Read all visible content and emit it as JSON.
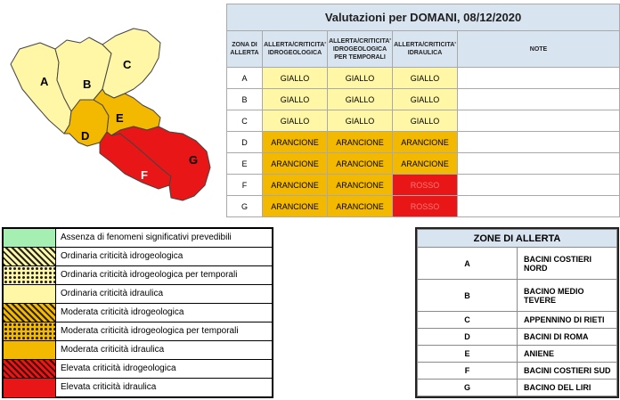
{
  "alert_table": {
    "title": "Valutazioni per DOMANI, 08/12/2020",
    "headers": {
      "zone": [
        "ZONA DI",
        "ALLERTA"
      ],
      "idrogeologica": [
        "ALLERTA/CRITICITA'",
        "IDROGEOLOGICA"
      ],
      "temporali": [
        "ALLERTA/CRITICITA'",
        "IDROGEOLOGICA",
        "PER TEMPORALI"
      ],
      "idraulica": [
        "ALLERTA/CRITICITA'",
        "IDRAULICA"
      ],
      "note": "NOTE"
    },
    "rows": [
      {
        "zone": "A",
        "idrogeologica": "GIALLO",
        "temporali": "GIALLO",
        "idraulica": "GIALLO",
        "note": ""
      },
      {
        "zone": "B",
        "idrogeologica": "GIALLO",
        "temporali": "GIALLO",
        "idraulica": "GIALLO",
        "note": ""
      },
      {
        "zone": "C",
        "idrogeologica": "GIALLO",
        "temporali": "GIALLO",
        "idraulica": "GIALLO",
        "note": ""
      },
      {
        "zone": "D",
        "idrogeologica": "ARANCIONE",
        "temporali": "ARANCIONE",
        "idraulica": "ARANCIONE",
        "note": ""
      },
      {
        "zone": "E",
        "idrogeologica": "ARANCIONE",
        "temporali": "ARANCIONE",
        "idraulica": "ARANCIONE",
        "note": ""
      },
      {
        "zone": "F",
        "idrogeologica": "ARANCIONE",
        "temporali": "ARANCIONE",
        "idraulica": "ROSSO",
        "note": ""
      },
      {
        "zone": "G",
        "idrogeologica": "ARANCIONE",
        "temporali": "ARANCIONE",
        "idraulica": "ROSSO",
        "note": ""
      }
    ]
  },
  "level_colors": {
    "GIALLO": "#fff6a6",
    "ARANCIONE": "#f3b800",
    "ROSSO": "#e81616",
    "VERDE": "#a6efb2"
  },
  "map": {
    "zone_labels": [
      "A",
      "B",
      "C",
      "D",
      "E",
      "F",
      "G"
    ]
  },
  "legend": [
    {
      "label": "Assenza di fenomeni significativi prevedibili",
      "swatch": "green"
    },
    {
      "label": "Ordinaria criticità idrogeologica",
      "swatch": "yellow-hatched"
    },
    {
      "label": "Ordinaria criticità idrogeologica per temporali",
      "swatch": "yellow-dotted"
    },
    {
      "label": "Ordinaria criticità idraulica",
      "swatch": "yellow"
    },
    {
      "label": "Moderata criticità idrogeologica",
      "swatch": "orange-hatched"
    },
    {
      "label": "Moderata criticità idrogeologica per temporali",
      "swatch": "orange-dotted"
    },
    {
      "label": "Moderata criticità idraulica",
      "swatch": "orange"
    },
    {
      "label": "Elevata criticità idrogeologica",
      "swatch": "red-hatched"
    },
    {
      "label": "Elevata criticità idraulica",
      "swatch": "red"
    }
  ],
  "zones": {
    "title": "ZONE DI ALLERTA",
    "items": [
      {
        "code": "A",
        "name": "BACINI COSTIERI NORD"
      },
      {
        "code": "B",
        "name": "BACINO MEDIO TEVERE"
      },
      {
        "code": "C",
        "name": "APPENNINO DI RIETI"
      },
      {
        "code": "D",
        "name": "BACINI DI ROMA"
      },
      {
        "code": "E",
        "name": "ANIENE"
      },
      {
        "code": "F",
        "name": "BACINI COSTIERI SUD"
      },
      {
        "code": "G",
        "name": "BACINO DEL LIRI"
      }
    ]
  }
}
